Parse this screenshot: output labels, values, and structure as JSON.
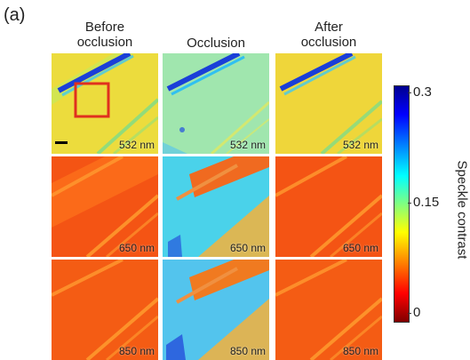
{
  "panel_label": "(a)",
  "columns": [
    {
      "title_line1": "Before",
      "title_line2": "occlusion"
    },
    {
      "title_line1": "Occlusion",
      "title_line2": ""
    },
    {
      "title_line1": "After",
      "title_line2": "occlusion"
    }
  ],
  "rows": [
    {
      "wavelength": "532 nm"
    },
    {
      "wavelength": "650 nm"
    },
    {
      "wavelength": "850 nm"
    }
  ],
  "colorbar": {
    "label": "Speckle contrast",
    "ticks": [
      "0.3",
      "0.15",
      "0"
    ],
    "range": [
      0,
      0.3
    ]
  },
  "colors": {
    "roi_box": "#e0301e",
    "scale_bar": "#000000"
  }
}
